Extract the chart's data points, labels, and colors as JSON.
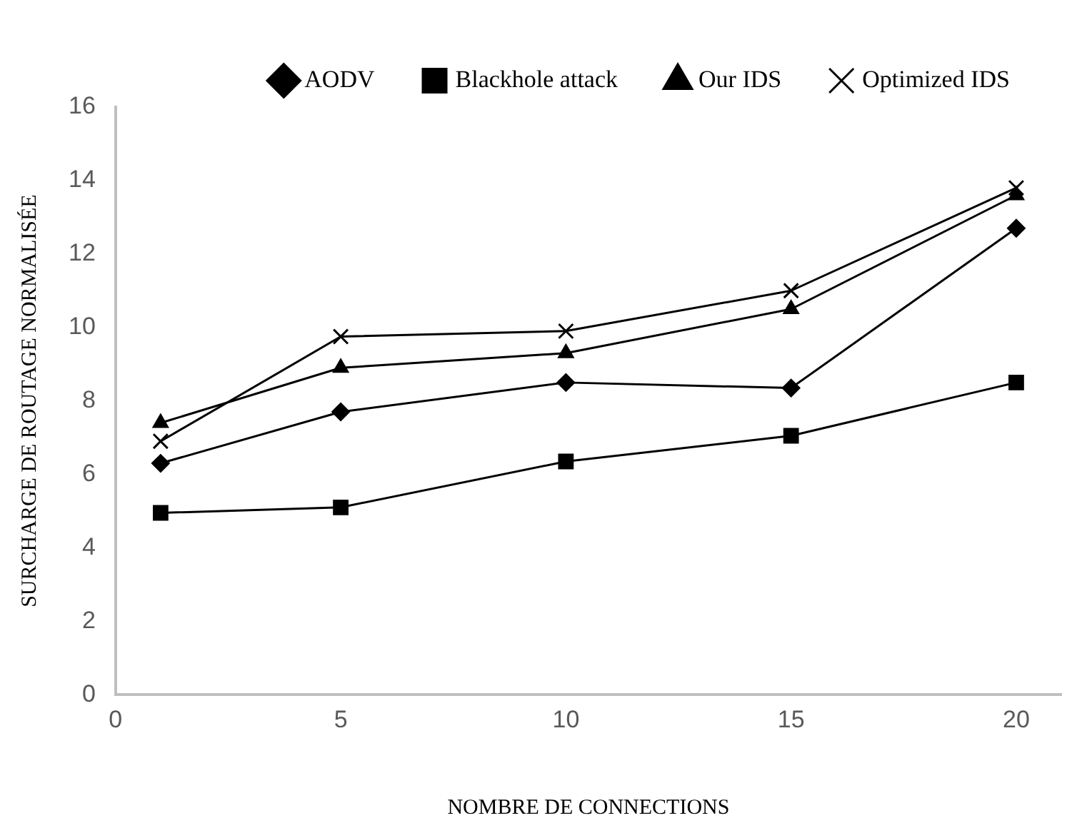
{
  "chart_data": {
    "type": "line",
    "xlabel": "NOMBRE DE CONNECTIONS",
    "ylabel": "SURCHARGE DE ROUTAGE NORMALISÉE",
    "x": [
      1,
      5,
      10,
      15,
      20
    ],
    "series": [
      {
        "name": "AODV",
        "color": "#000000",
        "marker": "diamond",
        "values": [
          6.3,
          7.7,
          8.5,
          8.35,
          12.7
        ]
      },
      {
        "name": "Blackhole attack",
        "color": "#000000",
        "marker": "square",
        "values": [
          4.95,
          5.1,
          6.35,
          7.05,
          8.5
        ]
      },
      {
        "name": "Our IDS",
        "color": "#000000",
        "marker": "triangle",
        "values": [
          7.4,
          8.9,
          9.3,
          10.5,
          13.6
        ]
      },
      {
        "name": "Optimized IDS",
        "color": "#000000",
        "marker": "cross",
        "values": [
          6.9,
          9.75,
          9.9,
          11.0,
          13.8
        ]
      }
    ],
    "xlim": [
      0,
      21
    ],
    "xticks": [
      0,
      5,
      10,
      15,
      20
    ],
    "ylim": [
      0,
      16
    ],
    "yticks": [
      0,
      2,
      4,
      6,
      8,
      10,
      12,
      14,
      16
    ],
    "grid": false,
    "legend": "top",
    "line_style": "solid"
  }
}
